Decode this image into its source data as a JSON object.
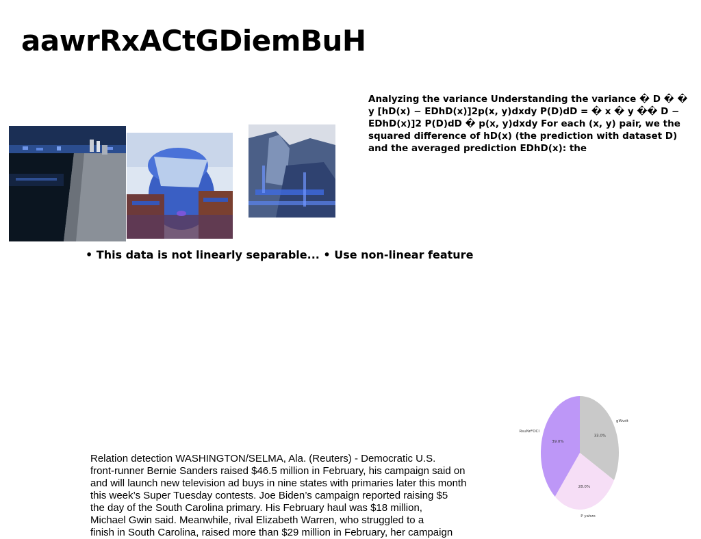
{
  "page": {
    "title": "aawrRxACtGDiemBuH"
  },
  "variance_paragraph": "Analyzing the variance Understanding the variance � D � � y [hD(x) − EDhD(x)]2p(x, y)dxdy P(D)dD = � x � y �� D − EDhD(x)]2 P(D)dD � p(x, y)dxdy For each (x, y) pair, we the squared difference of hD(x) (the prediction with dataset D) and the averaged prediction EDhD(x): the",
  "bullets_line": "• This data is not linearly separable... • Use non-linear feature",
  "article": {
    "lines": [
      "Relation detection WASHINGTON/SELMA, Ala. (Reuters) - Democratic U.S.",
      "front-runner Bernie Sanders raised $46.5 million in February, his campaign said on",
      "and will launch new television ad buys in nine states with primaries later this month",
      "this week’s Super Tuesday contests. Joe Biden’s campaign reported raising $5",
      "the day of the South Carolina primary. His February haul was $18 million,",
      "Michael Gwin said. Meanwhile, rival Elizabeth Warren, who struggled to a",
      "finish in South Carolina, raised more than $29 million in February, her campaign"
    ]
  },
  "images": [
    {
      "name": "night-waterfront-photo"
    },
    {
      "name": "person-covering-face-photo"
    },
    {
      "name": "rocky-shore-photo"
    }
  ],
  "chart_data": {
    "type": "pie",
    "title": "",
    "categories": [
      "gWvdt",
      "P yahzo",
      "RsuNrFOCI"
    ],
    "values": [
      33.0,
      28.0,
      39.0
    ],
    "value_labels": [
      "33.0%",
      "28.0%",
      "39.0%"
    ],
    "colors": [
      "#c9c9c9",
      "#f6def6",
      "#bd97f7"
    ],
    "start_angle_deg": 90,
    "direction": "clockwise",
    "legend": "none"
  }
}
